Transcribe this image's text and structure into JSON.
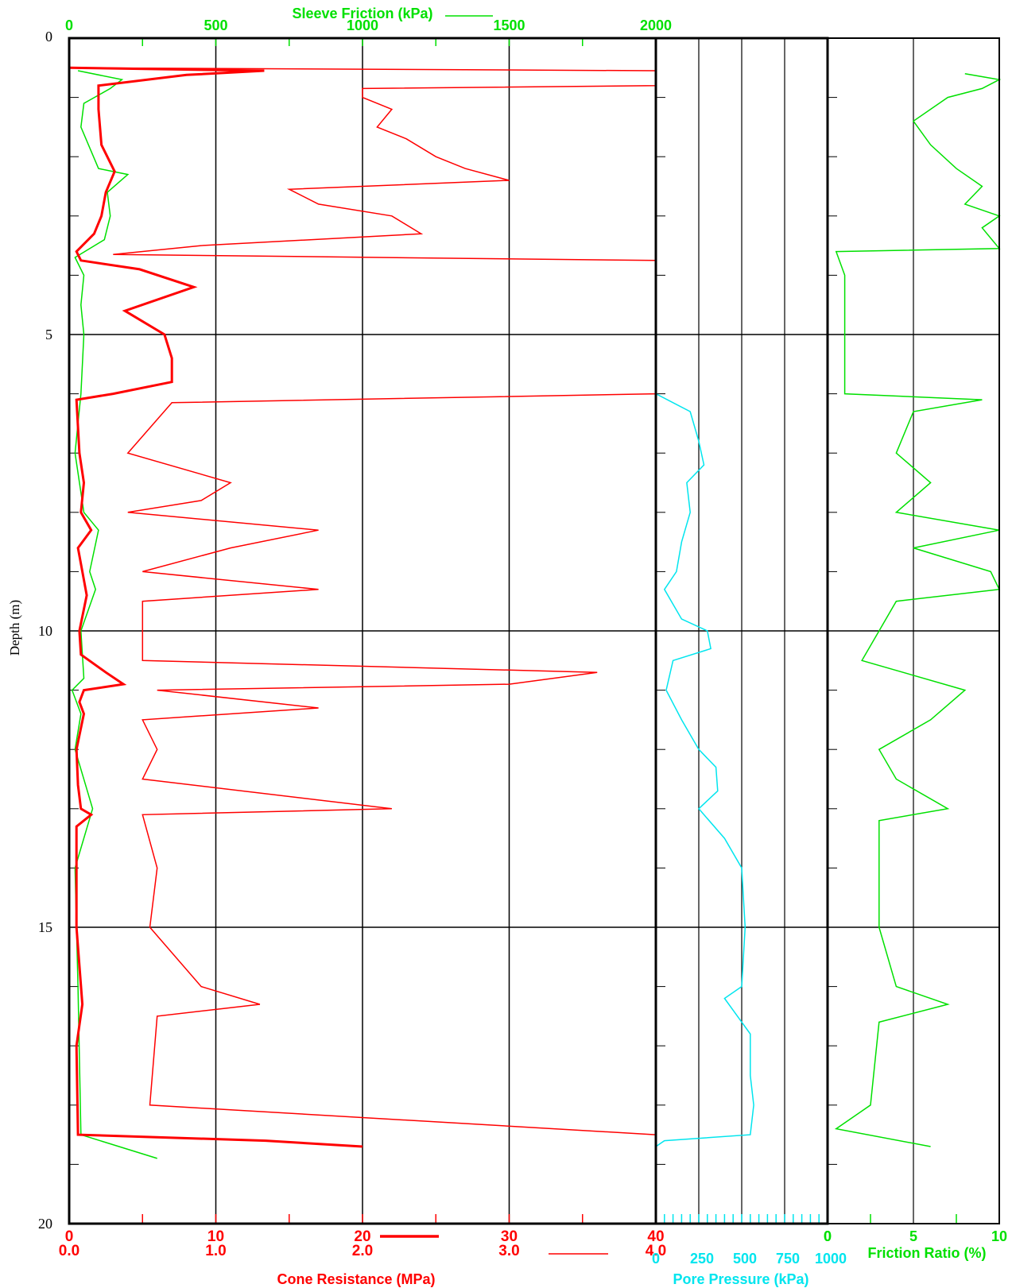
{
  "colors": {
    "cone": "#ff0000",
    "sleeve": "#00e000",
    "pore": "#00e5ee",
    "frame": "#000000"
  },
  "chart_data": {
    "type": "line",
    "depth_axis": {
      "label": "Depth (m)",
      "range": [
        0,
        20
      ],
      "ticks": [
        "0",
        "5",
        "10",
        "15",
        "20"
      ],
      "inverted": true
    },
    "sleeve_friction": {
      "label": "Sleeve Friction (kPa)",
      "range": [
        0,
        2000
      ],
      "ticks": [
        "0",
        "500",
        "1000",
        "1500",
        "2000"
      ],
      "series": [
        [
          0.55,
          30
        ],
        [
          0.7,
          180
        ],
        [
          0.85,
          140
        ],
        [
          1.1,
          50
        ],
        [
          1.5,
          40
        ],
        [
          2.2,
          100
        ],
        [
          2.3,
          200
        ],
        [
          2.6,
          130
        ],
        [
          3.0,
          140
        ],
        [
          3.4,
          120
        ],
        [
          3.7,
          20
        ],
        [
          4.0,
          50
        ],
        [
          4.5,
          40
        ],
        [
          5.0,
          50
        ],
        [
          6.0,
          40
        ],
        [
          7.0,
          20
        ],
        [
          8.0,
          50
        ],
        [
          8.3,
          100
        ],
        [
          9.0,
          70
        ],
        [
          9.3,
          90
        ],
        [
          10.0,
          40
        ],
        [
          10.8,
          50
        ],
        [
          11.0,
          10
        ],
        [
          11.4,
          40
        ],
        [
          12.0,
          20
        ],
        [
          13.0,
          80
        ],
        [
          14.0,
          20
        ],
        [
          16.0,
          30
        ],
        [
          18.5,
          40
        ],
        [
          18.9,
          300
        ]
      ]
    },
    "cone_resistance_a": {
      "label": "Cone Resistance (MPa)",
      "range": [
        0,
        40
      ],
      "ticks": [
        "0",
        "10",
        "20",
        "30",
        "40"
      ],
      "series": [
        [
          0.5,
          0
        ],
        [
          0.55,
          13.3
        ],
        [
          0.62,
          8
        ],
        [
          0.8,
          2
        ],
        [
          1.2,
          2
        ],
        [
          1.8,
          2.2
        ],
        [
          2.25,
          3.1
        ],
        [
          2.6,
          2.5
        ],
        [
          3.0,
          2.2
        ],
        [
          3.3,
          1.7
        ],
        [
          3.6,
          0.5
        ],
        [
          3.75,
          0.8
        ],
        [
          3.9,
          4.8
        ],
        [
          4.2,
          8.5
        ],
        [
          4.6,
          3.8
        ],
        [
          5.0,
          6.5
        ],
        [
          5.4,
          7.0
        ],
        [
          5.8,
          7.0
        ],
        [
          6.0,
          3.0
        ],
        [
          6.1,
          0.5
        ],
        [
          7.0,
          0.7
        ],
        [
          7.5,
          1.0
        ],
        [
          8.0,
          0.8
        ],
        [
          8.3,
          1.5
        ],
        [
          8.6,
          0.6
        ],
        [
          9.0,
          0.9
        ],
        [
          9.4,
          1.2
        ],
        [
          10.0,
          0.7
        ],
        [
          10.4,
          0.8
        ],
        [
          10.7,
          2.5
        ],
        [
          10.9,
          3.7
        ],
        [
          11.0,
          1.0
        ],
        [
          11.2,
          0.7
        ],
        [
          11.4,
          1.0
        ],
        [
          12.0,
          0.5
        ],
        [
          12.6,
          0.6
        ],
        [
          13.0,
          0.8
        ],
        [
          13.1,
          1.5
        ],
        [
          13.3,
          0.5
        ],
        [
          15.0,
          0.5
        ],
        [
          16.3,
          0.9
        ],
        [
          17.0,
          0.5
        ],
        [
          18.5,
          0.6
        ],
        [
          18.6,
          13.4
        ],
        [
          18.7,
          20
        ]
      ]
    },
    "cone_resistance_b": {
      "label": "Cone Resistance (MPa)",
      "range": [
        0,
        4
      ],
      "ticks": [
        "0.0",
        "1.0",
        "2.0",
        "3.0",
        "4.0"
      ],
      "series": [
        [
          0.5,
          0
        ],
        [
          0.55,
          4
        ],
        [
          0.8,
          4
        ],
        [
          0.85,
          2
        ],
        [
          1.0,
          2
        ],
        [
          1.2,
          2.2
        ],
        [
          1.5,
          2.1
        ],
        [
          1.7,
          2.3
        ],
        [
          2.0,
          2.5
        ],
        [
          2.2,
          2.7
        ],
        [
          2.4,
          3.0
        ],
        [
          2.55,
          1.5
        ],
        [
          2.8,
          1.7
        ],
        [
          3.0,
          2.2
        ],
        [
          3.3,
          2.4
        ],
        [
          3.5,
          0.9
        ],
        [
          3.65,
          0.3
        ],
        [
          3.75,
          4.0
        ],
        [
          6.0,
          4.0
        ],
        [
          6.15,
          0.7
        ],
        [
          7.0,
          0.4
        ],
        [
          7.5,
          1.1
        ],
        [
          7.8,
          0.9
        ],
        [
          8.0,
          0.4
        ],
        [
          8.3,
          1.7
        ],
        [
          8.6,
          1.1
        ],
        [
          9.0,
          0.5
        ],
        [
          9.3,
          1.7
        ],
        [
          9.5,
          0.5
        ],
        [
          10.5,
          0.5
        ],
        [
          10.7,
          3.6
        ],
        [
          10.9,
          3.0
        ],
        [
          11.0,
          0.6
        ],
        [
          11.3,
          1.7
        ],
        [
          11.5,
          0.5
        ],
        [
          12.0,
          0.6
        ],
        [
          12.5,
          0.5
        ],
        [
          13.0,
          2.2
        ],
        [
          13.1,
          0.5
        ],
        [
          14.0,
          0.6
        ],
        [
          15.0,
          0.55
        ],
        [
          16.0,
          0.9
        ],
        [
          16.3,
          1.3
        ],
        [
          16.5,
          0.6
        ],
        [
          18.0,
          0.55
        ],
        [
          18.5,
          4.0
        ]
      ]
    },
    "pore_pressure": {
      "label": "Pore Pressure (kPa)",
      "range": [
        0,
        1000
      ],
      "ticks": [
        "0",
        "250",
        "500",
        "750",
        "1000"
      ],
      "series": [
        [
          0.5,
          0
        ],
        [
          6.0,
          0
        ],
        [
          6.3,
          200
        ],
        [
          6.8,
          250
        ],
        [
          7.2,
          280
        ],
        [
          7.5,
          180
        ],
        [
          8.0,
          200
        ],
        [
          8.5,
          150
        ],
        [
          9.0,
          120
        ],
        [
          9.3,
          50
        ],
        [
          9.8,
          150
        ],
        [
          10.0,
          300
        ],
        [
          10.3,
          320
        ],
        [
          10.5,
          100
        ],
        [
          11.0,
          60
        ],
        [
          11.5,
          150
        ],
        [
          12.0,
          250
        ],
        [
          12.3,
          350
        ],
        [
          12.7,
          360
        ],
        [
          13.0,
          250
        ],
        [
          13.5,
          400
        ],
        [
          14.0,
          500
        ],
        [
          15.0,
          520
        ],
        [
          16.0,
          500
        ],
        [
          16.2,
          400
        ],
        [
          16.8,
          550
        ],
        [
          17.5,
          550
        ],
        [
          18.0,
          570
        ],
        [
          18.5,
          550
        ],
        [
          18.6,
          50
        ],
        [
          18.7,
          0
        ]
      ]
    },
    "friction_ratio": {
      "label": "Friction Ratio (%)",
      "range": [
        0,
        10
      ],
      "ticks": [
        "0",
        "5",
        "10"
      ],
      "series": [
        [
          0.6,
          8
        ],
        [
          0.7,
          10
        ],
        [
          0.85,
          9
        ],
        [
          1.0,
          7
        ],
        [
          1.4,
          5
        ],
        [
          1.8,
          6
        ],
        [
          2.2,
          7.5
        ],
        [
          2.5,
          9
        ],
        [
          2.8,
          8
        ],
        [
          3.0,
          10
        ],
        [
          3.2,
          9
        ],
        [
          3.55,
          10
        ],
        [
          3.6,
          0.5
        ],
        [
          4.0,
          1.0
        ],
        [
          5.0,
          1.0
        ],
        [
          6.0,
          1.0
        ],
        [
          6.1,
          9
        ],
        [
          6.3,
          5
        ],
        [
          7.0,
          4
        ],
        [
          7.5,
          6
        ],
        [
          8.0,
          4
        ],
        [
          8.3,
          10
        ],
        [
          8.6,
          5
        ],
        [
          9.0,
          9.5
        ],
        [
          9.3,
          10
        ],
        [
          9.5,
          4
        ],
        [
          10.0,
          3
        ],
        [
          10.5,
          2
        ],
        [
          11.0,
          8
        ],
        [
          11.5,
          6
        ],
        [
          12.0,
          3
        ],
        [
          12.5,
          4
        ],
        [
          13.0,
          7
        ],
        [
          13.2,
          3
        ],
        [
          14.0,
          3
        ],
        [
          15.0,
          3
        ],
        [
          16.0,
          4
        ],
        [
          16.3,
          7
        ],
        [
          16.6,
          3
        ],
        [
          18.0,
          2.5
        ],
        [
          18.4,
          0.5
        ],
        [
          18.7,
          6
        ]
      ]
    }
  }
}
